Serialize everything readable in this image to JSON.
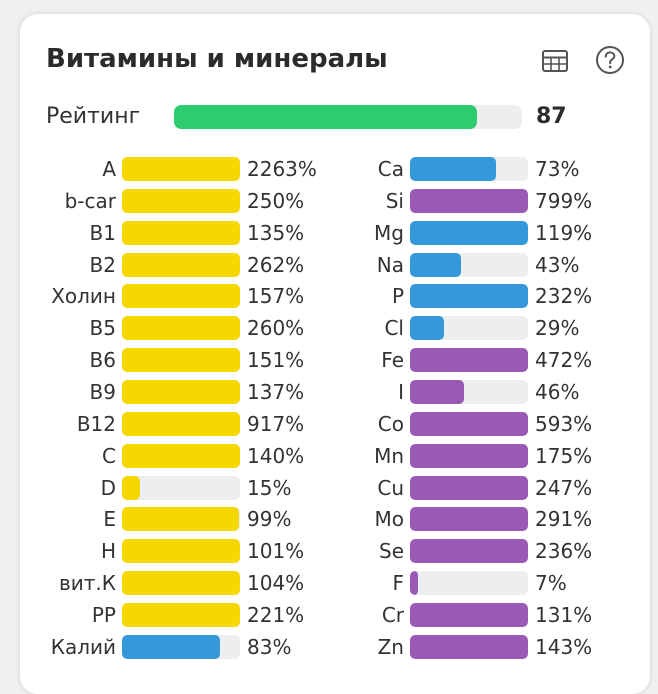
{
  "widget": {
    "title": "Витамины и минералы",
    "icons": [
      "table-icon",
      "help-icon"
    ]
  },
  "rating": {
    "label": "Рейтинг",
    "value": "87",
    "fraction": 0.87,
    "color": "#2ecc71"
  },
  "colors": {
    "yellow": "#f5d800",
    "blue": "#3498db",
    "purple": "#9b59b6",
    "track": "#eceef0"
  },
  "vitamins": [
    {
      "name": "A",
      "value": "2263%",
      "pct": 2263,
      "color": "yellow"
    },
    {
      "name": "b-car",
      "value": "250%",
      "pct": 250,
      "color": "yellow"
    },
    {
      "name": "B1",
      "value": "135%",
      "pct": 135,
      "color": "yellow"
    },
    {
      "name": "B2",
      "value": "262%",
      "pct": 262,
      "color": "yellow"
    },
    {
      "name": "Холин",
      "value": "157%",
      "pct": 157,
      "color": "yellow"
    },
    {
      "name": "B5",
      "value": "260%",
      "pct": 260,
      "color": "yellow"
    },
    {
      "name": "B6",
      "value": "151%",
      "pct": 151,
      "color": "yellow"
    },
    {
      "name": "B9",
      "value": "137%",
      "pct": 137,
      "color": "yellow"
    },
    {
      "name": "B12",
      "value": "917%",
      "pct": 917,
      "color": "yellow"
    },
    {
      "name": "C",
      "value": "140%",
      "pct": 140,
      "color": "yellow"
    },
    {
      "name": "D",
      "value": "15%",
      "pct": 15,
      "color": "yellow"
    },
    {
      "name": "E",
      "value": "99%",
      "pct": 99,
      "color": "yellow"
    },
    {
      "name": "H",
      "value": "101%",
      "pct": 101,
      "color": "yellow"
    },
    {
      "name": "вит.К",
      "value": "104%",
      "pct": 104,
      "color": "yellow"
    },
    {
      "name": "PP",
      "value": "221%",
      "pct": 221,
      "color": "yellow"
    },
    {
      "name": "Калий",
      "value": "83%",
      "pct": 83,
      "color": "blue"
    }
  ],
  "minerals": [
    {
      "name": "Ca",
      "value": "73%",
      "pct": 73,
      "color": "blue"
    },
    {
      "name": "Si",
      "value": "799%",
      "pct": 799,
      "color": "purple"
    },
    {
      "name": "Mg",
      "value": "119%",
      "pct": 119,
      "color": "blue"
    },
    {
      "name": "Na",
      "value": "43%",
      "pct": 43,
      "color": "blue"
    },
    {
      "name": "P",
      "value": "232%",
      "pct": 232,
      "color": "blue"
    },
    {
      "name": "Cl",
      "value": "29%",
      "pct": 29,
      "color": "blue"
    },
    {
      "name": "Fe",
      "value": "472%",
      "pct": 472,
      "color": "purple"
    },
    {
      "name": "I",
      "value": "46%",
      "pct": 46,
      "color": "purple"
    },
    {
      "name": "Co",
      "value": "593%",
      "pct": 593,
      "color": "purple"
    },
    {
      "name": "Mn",
      "value": "175%",
      "pct": 175,
      "color": "purple"
    },
    {
      "name": "Cu",
      "value": "247%",
      "pct": 247,
      "color": "purple"
    },
    {
      "name": "Mo",
      "value": "291%",
      "pct": 291,
      "color": "purple"
    },
    {
      "name": "Se",
      "value": "236%",
      "pct": 236,
      "color": "purple"
    },
    {
      "name": "F",
      "value": "7%",
      "pct": 7,
      "color": "purple"
    },
    {
      "name": "Cr",
      "value": "131%",
      "pct": 131,
      "color": "purple"
    },
    {
      "name": "Zn",
      "value": "143%",
      "pct": 143,
      "color": "purple"
    }
  ]
}
